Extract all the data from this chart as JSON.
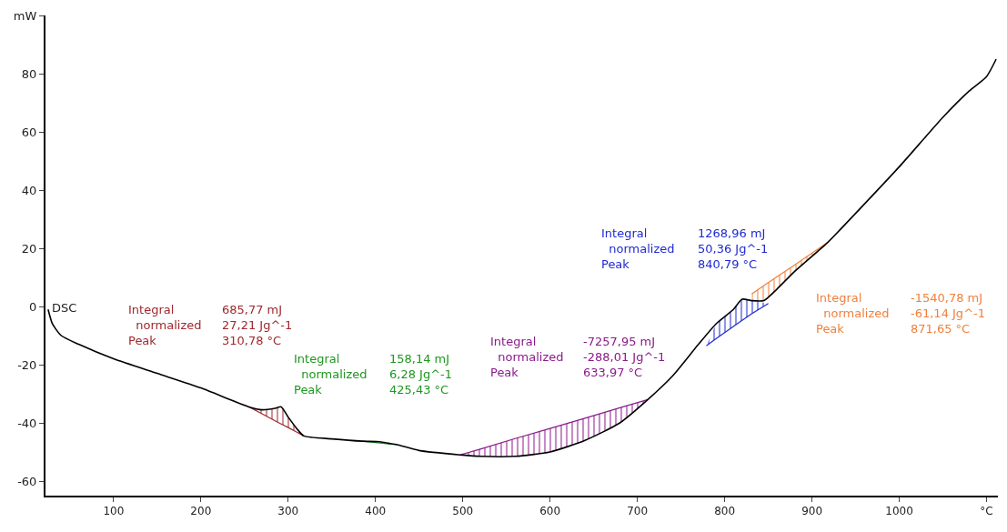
{
  "chart_data": {
    "type": "line",
    "xlim": [
      22,
      1113
    ],
    "ylim": [
      -65,
      100
    ],
    "xticks": [
      100,
      200,
      300,
      400,
      500,
      600,
      700,
      800,
      900,
      1000,
      {
        "value": 1100,
        "label": "°C"
      }
    ],
    "yticks": [
      -60,
      -40,
      -20,
      0,
      20,
      40,
      60,
      80,
      {
        "value": 100,
        "label": "mW"
      }
    ],
    "legend": false,
    "marker": "none",
    "line_style": "solid",
    "series": [
      {
        "name": "DSC",
        "color": "#000000",
        "x": [
          25,
          30,
          40,
          60,
          100,
          150,
          200,
          255,
          270,
          285,
          292,
          300,
          310,
          318,
          350,
          385,
          405,
          415,
          425,
          450,
          497,
          520,
          560,
          600,
          640,
          680,
          712,
          740,
          770,
          790,
          810,
          820,
          831,
          845,
          860,
          880,
          918,
          950,
          1000,
          1050,
          1080,
          1100,
          1111
        ],
        "values": [
          -1,
          -6,
          -10,
          -13,
          -18,
          -23,
          -28,
          -34.5,
          -35.5,
          -35,
          -34.5,
          -38,
          -42,
          -44.5,
          -45.5,
          -46.3,
          -46.5,
          -47,
          -47.5,
          -49.5,
          -51,
          -51.5,
          -51.5,
          -50,
          -46,
          -40,
          -32,
          -24,
          -13,
          -6,
          -1,
          2.5,
          2,
          2,
          6,
          12,
          22,
          32,
          48,
          65,
          74,
          79,
          85
        ]
      },
      {
        "type": "line",
        "color": "#a0282d",
        "x": [
          255,
          270,
          285,
          292,
          300,
          310,
          318
        ],
        "values": [
          -34.5,
          -36.9,
          -39.3,
          -40.4,
          -41.6,
          -43.2,
          -44.5
        ],
        "lower": [
          -34.5,
          -36.9,
          -39.3,
          -40.4,
          -41.6,
          -43.2,
          -44.5
        ],
        "upper": [
          -34.5,
          -35.5,
          -35,
          -34.5,
          -38,
          -42,
          -44.5
        ]
      },
      {
        "type": "line",
        "color": "#1e961e",
        "x": [
          385,
          405,
          415,
          425
        ],
        "values": [
          -46.3,
          -46.9,
          -47.2,
          -47.5
        ],
        "lower": [
          -46.3,
          -46.9,
          -47.2,
          -47.5
        ],
        "upper": [
          -46.3,
          -46.5,
          -47,
          -47.5
        ]
      },
      {
        "type": "line",
        "color": "#8b1a8b",
        "x": [
          497,
          520,
          560,
          600,
          640,
          680,
          712
        ],
        "values": [
          -51,
          -49,
          -45.4,
          -41.9,
          -38.4,
          -34.8,
          -32
        ],
        "upper": [
          -51,
          -49,
          -45.4,
          -41.9,
          -38.4,
          -34.8,
          -32
        ],
        "lower": [
          -51,
          -51.5,
          -51.5,
          -50,
          -46,
          -40,
          -32
        ]
      },
      {
        "type": "line",
        "color": "#1f2ad0",
        "x": [
          779,
          790,
          810,
          820,
          831,
          850
        ],
        "values": [
          -13.5,
          -11.1,
          -6.9,
          -4.8,
          -2.5,
          1
        ],
        "lower": [
          -13.5,
          -11.1,
          -6.9,
          -4.8,
          -2.5,
          1
        ],
        "upper": [
          -13.5,
          -6,
          -1,
          2.5,
          2,
          1
        ]
      },
      {
        "type": "line",
        "color": "#f0803c",
        "x": [
          831,
          845,
          860,
          880,
          918
        ],
        "values": [
          4.3,
          7.2,
          10.2,
          14.2,
          22
        ],
        "upper": [
          4.3,
          7.2,
          10.2,
          14.2,
          22
        ],
        "lower": [
          2,
          2,
          6,
          12,
          22
        ]
      }
    ],
    "annotations": [
      "Integral\n  normalized\nPeak",
      "685,77 mJ\n27,21 Jg^-1\n310,78 °C",
      "Integral\n  normalized\nPeak",
      "158,14 mJ\n6,28 Jg^-1\n425,43 °C",
      "Integral\n  normalized\nPeak",
      "-7257,95 mJ\n-288,01 Jg^-1\n633,97 °C",
      "Integral\n  normalized\nPeak",
      "1268,96 mJ\n50,36 Jg^-1\n840,79 °C",
      "Integral\n  normalized\nPeak",
      "-1540,78 mJ\n-61,14 Jg^-1\n871,65 °C"
    ]
  }
}
